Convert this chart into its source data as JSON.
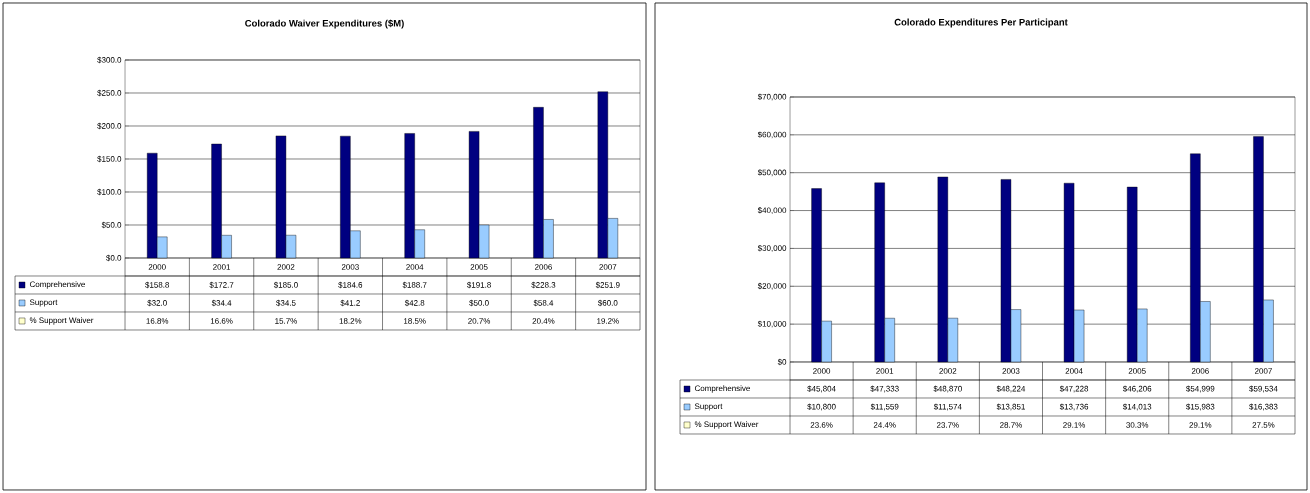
{
  "chart_data": [
    {
      "type": "bar",
      "title": "Colorado Waiver Expenditures ($M)",
      "categories": [
        "2000",
        "2001",
        "2002",
        "2003",
        "2004",
        "2005",
        "2006",
        "2007"
      ],
      "series": [
        {
          "name": "Comprehensive",
          "color": "#000080",
          "values": [
            158.8,
            172.7,
            185.0,
            184.6,
            188.7,
            191.8,
            228.3,
            251.9
          ],
          "value_labels": [
            "$158.8",
            "$172.7",
            "$185.0",
            "$184.6",
            "$188.7",
            "$191.8",
            "$228.3",
            "$251.9"
          ]
        },
        {
          "name": "Support",
          "color": "#99ccff",
          "values": [
            32.0,
            34.4,
            34.5,
            41.2,
            42.8,
            50.0,
            58.4,
            60.0
          ],
          "value_labels": [
            "$32.0",
            "$34.4",
            "$34.5",
            "$41.2",
            "$42.8",
            "$50.0",
            "$58.4",
            "$60.0"
          ]
        },
        {
          "name": "% Support Waiver",
          "color": "#ffffcc",
          "values": [
            null,
            null,
            null,
            null,
            null,
            null,
            null,
            null
          ],
          "value_labels": [
            "16.8%",
            "16.6%",
            "15.7%",
            "18.2%",
            "18.5%",
            "20.7%",
            "20.4%",
            "19.2%"
          ]
        }
      ],
      "ylim": [
        0,
        300
      ],
      "yticks": [
        {
          "value": 0,
          "label": "$0.0"
        },
        {
          "value": 50,
          "label": "$50.0"
        },
        {
          "value": 100,
          "label": "$100.0"
        },
        {
          "value": 150,
          "label": "$150.0"
        },
        {
          "value": 200,
          "label": "$200.0"
        },
        {
          "value": 250,
          "label": "$250.0"
        },
        {
          "value": 300,
          "label": "$300.0"
        }
      ],
      "grid": "y",
      "legend": "bottom"
    },
    {
      "type": "bar",
      "title": "Colorado Expenditures Per Participant",
      "categories": [
        "2000",
        "2001",
        "2002",
        "2003",
        "2004",
        "2005",
        "2006",
        "2007"
      ],
      "series": [
        {
          "name": "Comprehensive",
          "color": "#000080",
          "values": [
            45804,
            47333,
            48870,
            48224,
            47228,
            46206,
            54999,
            59534
          ],
          "value_labels": [
            "$45,804",
            "$47,333",
            "$48,870",
            "$48,224",
            "$47,228",
            "$46,206",
            "$54,999",
            "$59,534"
          ]
        },
        {
          "name": "Support",
          "color": "#99ccff",
          "values": [
            10800,
            11559,
            11574,
            13851,
            13736,
            14013,
            15983,
            16383
          ],
          "value_labels": [
            "$10,800",
            "$11,559",
            "$11,574",
            "$13,851",
            "$13,736",
            "$14,013",
            "$15,983",
            "$16,383"
          ]
        },
        {
          "name": "% Support Waiver",
          "color": "#ffffcc",
          "values": [
            null,
            null,
            null,
            null,
            null,
            null,
            null,
            null
          ],
          "value_labels": [
            "23.6%",
            "24.4%",
            "23.7%",
            "28.7%",
            "29.1%",
            "30.3%",
            "29.1%",
            "27.5%"
          ]
        }
      ],
      "ylim": [
        0,
        70000
      ],
      "yticks": [
        {
          "value": 0,
          "label": "$0"
        },
        {
          "value": 10000,
          "label": "$10,000"
        },
        {
          "value": 20000,
          "label": "$20,000"
        },
        {
          "value": 30000,
          "label": "$30,000"
        },
        {
          "value": 40000,
          "label": "$40,000"
        },
        {
          "value": 50000,
          "label": "$50,000"
        },
        {
          "value": 60000,
          "label": "$60,000"
        },
        {
          "value": 70000,
          "label": "$70,000"
        }
      ],
      "grid": "y",
      "legend": "bottom"
    }
  ]
}
